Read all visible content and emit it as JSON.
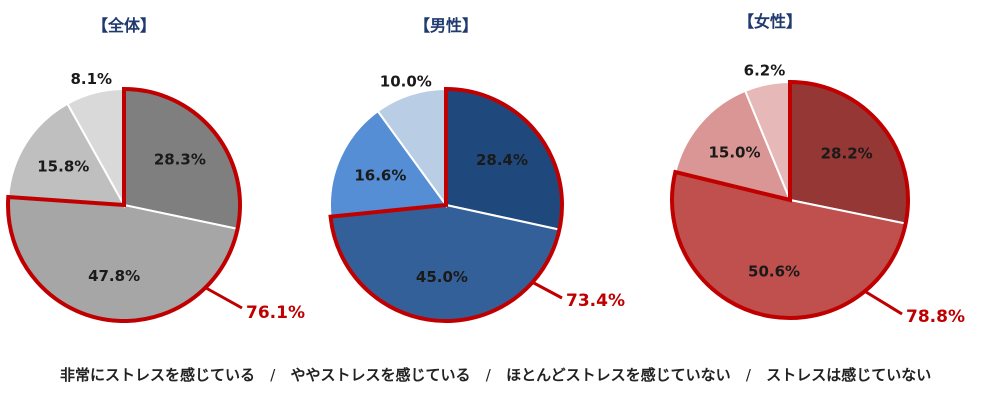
{
  "chart_data": [
    {
      "type": "pie",
      "title": "【全体】",
      "categories": [
        "非常にストレスを感じている",
        "ややストレスを感じている",
        "ほとんどストレスを感じていない",
        "ストレスは感じていない"
      ],
      "values": [
        28.3,
        47.8,
        15.8,
        8.1
      ],
      "labels": [
        "28.3%",
        "47.8%",
        "15.8%",
        "8.1%"
      ],
      "colors": [
        "#7f7f7f",
        "#a6a6a6",
        "#bfbfbf",
        "#d9d9d9"
      ],
      "highlight_total": "76.1%"
    },
    {
      "type": "pie",
      "title": "【男性】",
      "categories": [
        "非常にストレスを感じている",
        "ややストレスを感じている",
        "ほとんどストレスを感じていない",
        "ストレスは感じていない"
      ],
      "values": [
        28.4,
        45.0,
        16.6,
        10.0
      ],
      "labels": [
        "28.4%",
        "45.0%",
        "16.6%",
        "10.0%"
      ],
      "colors": [
        "#1f497d",
        "#34609a",
        "#558ed5",
        "#b9cde5"
      ],
      "highlight_total": "73.4%"
    },
    {
      "type": "pie",
      "title": "【女性】",
      "categories": [
        "非常にストレスを感じている",
        "ややストレスを感じている",
        "ほとんどストレスを感じていない",
        "ストレスは感じていない"
      ],
      "values": [
        28.2,
        50.6,
        15.0,
        6.2
      ],
      "labels": [
        "28.2%",
        "50.6%",
        "15.0%",
        "6.2%"
      ],
      "colors": [
        "#953735",
        "#c0504d",
        "#d99694",
        "#e6b9b8"
      ],
      "highlight_total": "78.8%"
    }
  ],
  "legend": {
    "item1": "非常にストレスを感じている",
    "item2": "ややストレスを感じている",
    "item3": "ほとんどストレスを感じていない",
    "item4": "ストレスは感じていない",
    "separator": "/"
  },
  "highlight_color": "#c00000"
}
